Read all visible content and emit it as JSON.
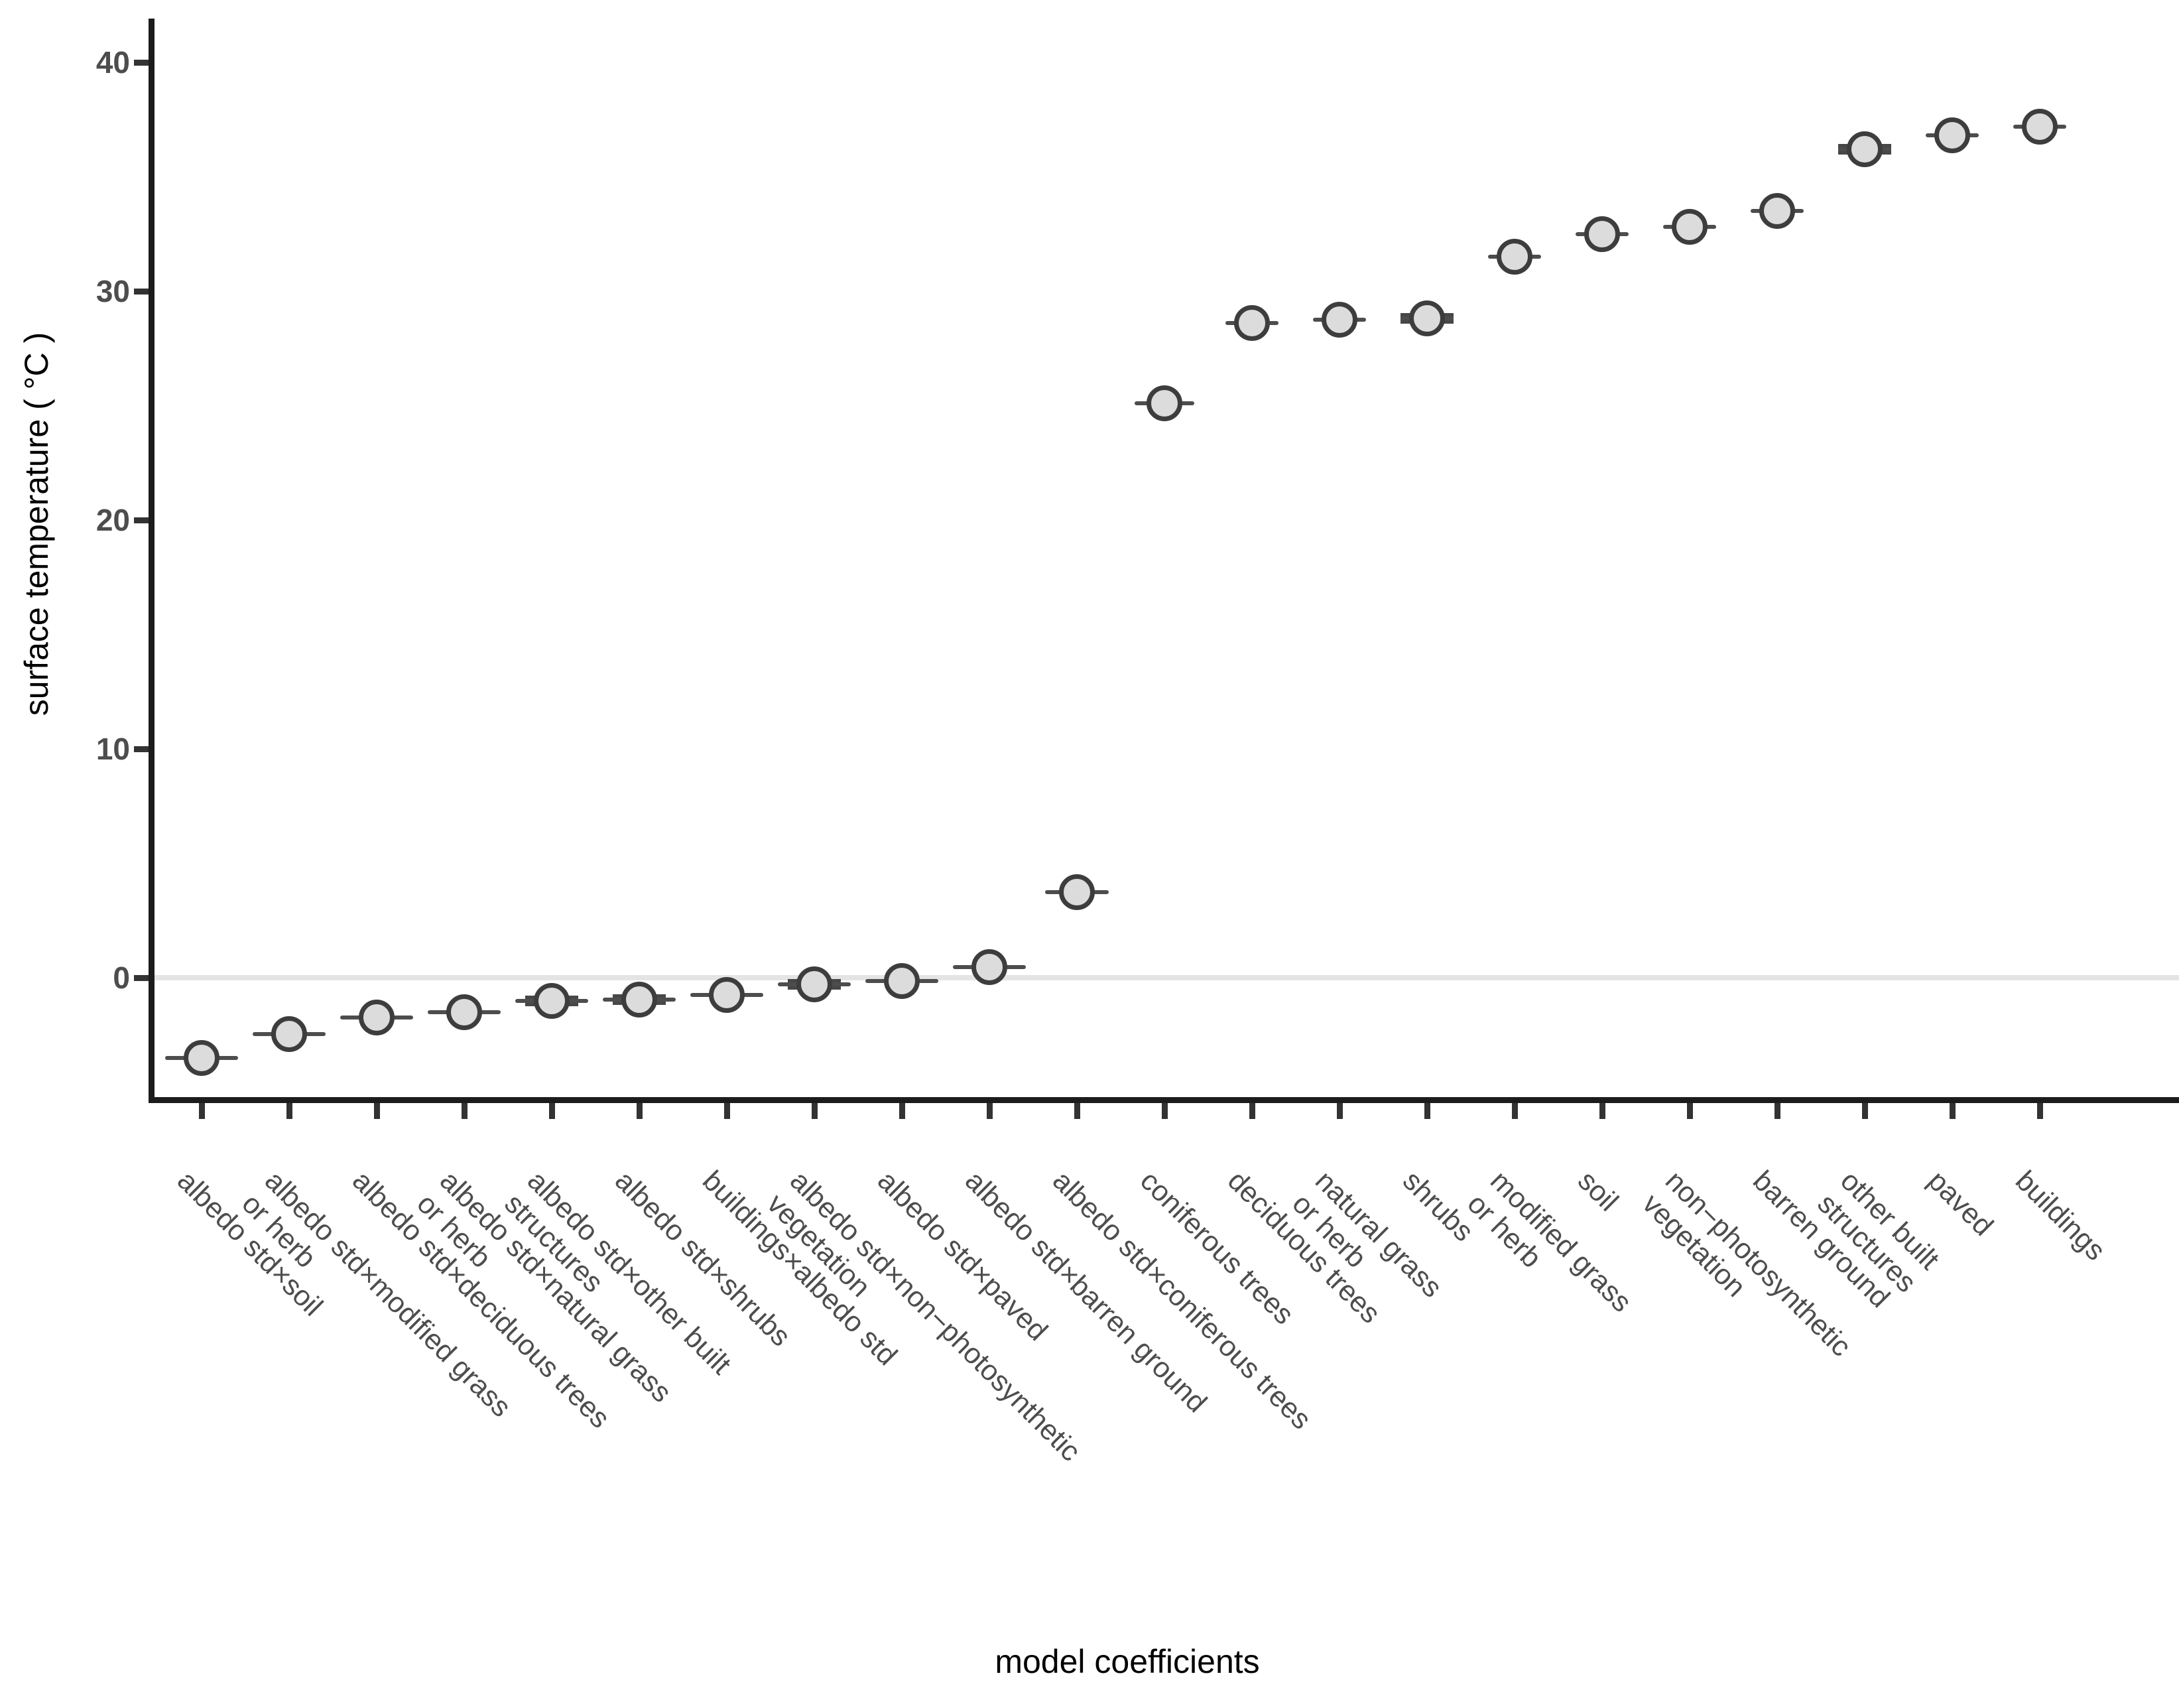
{
  "chart_data": {
    "type": "scatter",
    "title": "",
    "xlabel": "model coefficients",
    "ylabel": "surface temperature ( °C )",
    "ylim": [
      -5.3,
      41.9
    ],
    "yticks": [
      0,
      10,
      20,
      30,
      40
    ],
    "grid": "off",
    "legend": "none",
    "zero_reference_line": 0,
    "point_unit": "degrees C",
    "categories": [
      "albedo std×soil",
      "albedo std×modified grass\nor herb",
      "albedo std×deciduous trees",
      "albedo std×natural grass\nor herb",
      "albedo std×other built\nstructures",
      "albedo std×shrubs",
      "buildings×albedo std",
      "albedo std×non−photosynthetic\nvegetation",
      "albedo std×paved",
      "albedo std×barren ground",
      "albedo std×coniferous trees",
      "coniferous trees",
      "deciduous trees",
      "natural grass\nor herb",
      "shrubs",
      "modified grass\nor herb",
      "soil",
      "non−photosynthetic\nvegetation",
      "barren ground",
      "other built\nstructures",
      "paved",
      "buildings"
    ],
    "values": [
      -3.5,
      -2.45,
      -1.75,
      -1.5,
      -1.0,
      -0.95,
      -0.75,
      -0.3,
      -0.15,
      0.45,
      3.75,
      25.1,
      28.6,
      28.75,
      28.8,
      31.5,
      32.5,
      32.8,
      33.5,
      36.2,
      36.8,
      37.2
    ],
    "xerr_halfwidth": [
      0.42,
      0.42,
      0.42,
      0.42,
      0.42,
      0.42,
      0.42,
      0.42,
      0.42,
      0.42,
      0.36,
      0.34,
      0.3,
      0.3,
      0.3,
      0.3,
      0.3,
      0.3,
      0.3,
      0.3,
      0.3,
      0.3
    ],
    "thick_bar": [
      false,
      false,
      false,
      false,
      true,
      true,
      false,
      true,
      false,
      false,
      false,
      false,
      false,
      false,
      true,
      false,
      false,
      false,
      false,
      true,
      false,
      false
    ],
    "colors": {
      "background": "#ffffff",
      "axis_line": "#1c1c1c",
      "tick_mark": "#333333",
      "tick_text": "#4d4d4d",
      "category_text": "#4d4d4d",
      "axis_title_text": "#000000",
      "zero_line": "#e4e4e4",
      "point_fill": "#dcdcdc",
      "point_stroke": "#3d3d3d",
      "error_bar": "#4d4d4d"
    }
  }
}
